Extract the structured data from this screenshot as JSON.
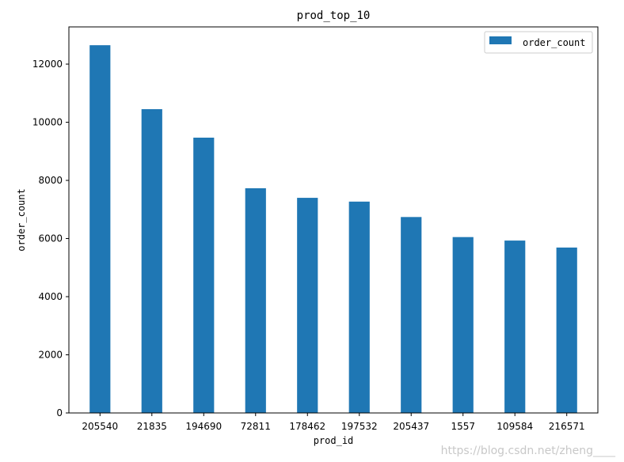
{
  "chart_data": {
    "type": "bar",
    "title": "prod_top_10",
    "xlabel": "prod_id",
    "ylabel": "order_count",
    "categories": [
      "205540",
      "21835",
      "194690",
      "72811",
      "178462",
      "197532",
      "205437",
      "1557",
      "109584",
      "216571"
    ],
    "series": [
      {
        "name": "order_count",
        "values": [
          12650,
          10450,
          9470,
          7730,
          7400,
          7270,
          6740,
          6050,
          5930,
          5690
        ],
        "color": "#1f77b4"
      }
    ],
    "ylim": [
      0,
      13280
    ],
    "yticks": [
      0,
      2000,
      4000,
      6000,
      8000,
      10000,
      12000
    ],
    "ytick_labels": [
      "0",
      "2000",
      "4000",
      "6000",
      "8000",
      "10000",
      "12000"
    ],
    "grid": false,
    "legend_position": "top-right"
  },
  "watermark": "https://blog.csdn.net/zheng____"
}
